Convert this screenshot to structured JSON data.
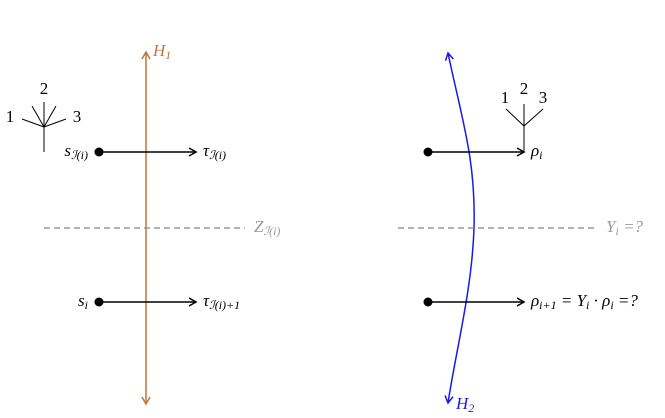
{
  "left": {
    "axis_label": [
      {
        "base": "H",
        "sub": "1"
      }
    ],
    "tree_labels": [
      "1",
      "2",
      "3"
    ],
    "top_source": [
      {
        "base": "s",
        "sub": "ℐ(i)"
      }
    ],
    "top_target": [
      {
        "base": "τ",
        "sub": "ℐ(i)"
      }
    ],
    "divider_label": [
      {
        "base": "Z",
        "sub": "ℐ(i)"
      }
    ],
    "bottom_source": [
      {
        "base": "s",
        "sub": "i"
      }
    ],
    "bottom_target": [
      {
        "base": "τ",
        "sub": "ℐ(i)+1"
      }
    ]
  },
  "right": {
    "axis_label": [
      {
        "base": "H",
        "sub": "2"
      }
    ],
    "tree_labels": [
      "1",
      "2",
      "3"
    ],
    "top_target": [
      {
        "base": "ρ",
        "sub": "i"
      }
    ],
    "divider_label": [
      {
        "base": "Y",
        "sub": "i"
      },
      {
        "base": " =?"
      }
    ],
    "bottom_target": [
      {
        "base": "ρ",
        "sub": "i+1"
      },
      {
        "base": " = Y",
        "sub": "i"
      },
      {
        "base": " · ρ",
        "sub": "i"
      },
      {
        "base": " =?"
      }
    ]
  }
}
